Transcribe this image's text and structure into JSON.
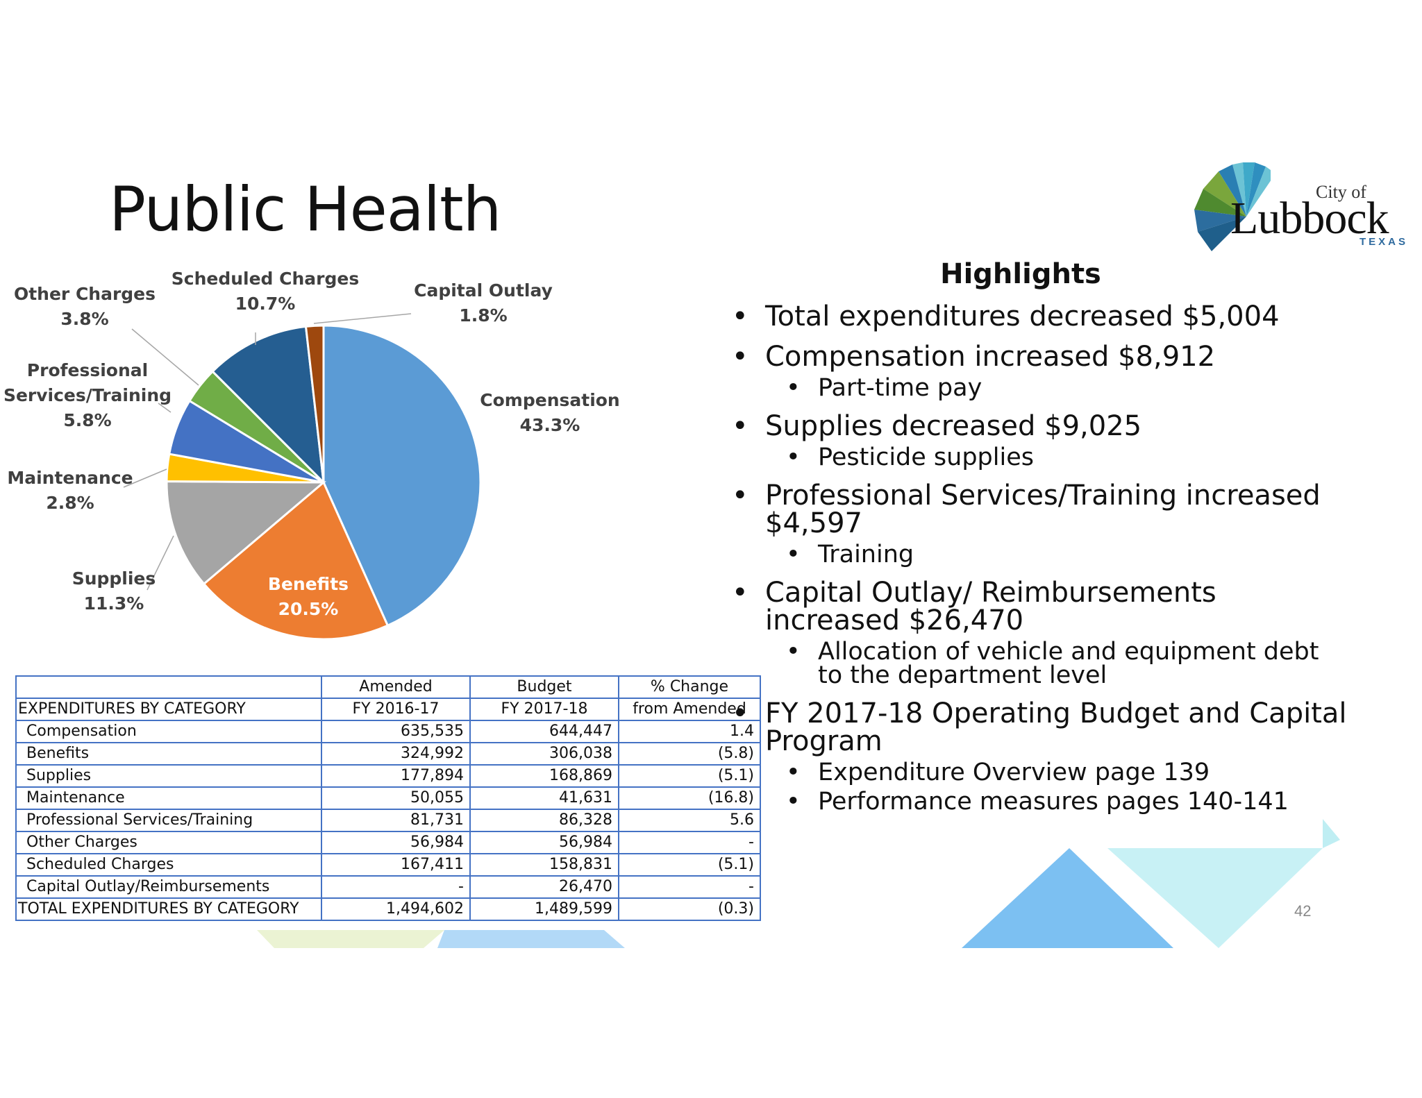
{
  "slide": {
    "title": "Public Health",
    "page_number": "42"
  },
  "logo": {
    "city": "City of",
    "name": "Lubbock",
    "state": "TEXAS"
  },
  "chart_data": {
    "type": "pie",
    "slices": [
      {
        "label": "Compensation",
        "value": 43.3,
        "value_label": "43.3%",
        "color": "#5b9bd5"
      },
      {
        "label": "Benefits",
        "value": 20.5,
        "value_label": "20.5%",
        "color": "#ed7d31"
      },
      {
        "label": "Supplies",
        "value": 11.3,
        "value_label": "11.3%",
        "color": "#a5a5a5"
      },
      {
        "label": "Maintenance",
        "value": 2.8,
        "value_label": "2.8%",
        "color": "#ffc000"
      },
      {
        "label": "Professional Services/Training",
        "value": 5.8,
        "value_label": "5.8%",
        "color": "#4472c4"
      },
      {
        "label": "Other Charges",
        "value": 3.8,
        "value_label": "3.8%",
        "color": "#70ad47"
      },
      {
        "label": "Scheduled Charges",
        "value": 10.7,
        "value_label": "10.7%",
        "color": "#255e91"
      },
      {
        "label": "Capital Outlay",
        "value": 1.8,
        "value_label": "1.8%",
        "color": "#9e480e"
      }
    ]
  },
  "table": {
    "header_row1": [
      "",
      "Amended",
      "Budget",
      "% Change"
    ],
    "header_row2": [
      "EXPENDITURES BY CATEGORY",
      "FY 2016-17",
      "FY 2017-18",
      "from Amended"
    ],
    "rows": [
      [
        "Compensation",
        "635,535",
        "644,447",
        "1.4"
      ],
      [
        "Benefits",
        "324,992",
        "306,038",
        "(5.8)"
      ],
      [
        "Supplies",
        "177,894",
        "168,869",
        "(5.1)"
      ],
      [
        "Maintenance",
        "50,055",
        "41,631",
        "(16.8)"
      ],
      [
        "Professional Services/Training",
        "81,731",
        "86,328",
        "5.6"
      ],
      [
        "Other Charges",
        "56,984",
        "56,984",
        "-"
      ],
      [
        "Scheduled Charges",
        "167,411",
        "158,831",
        "(5.1)"
      ],
      [
        "Capital Outlay/Reimbursements",
        "-",
        "26,470",
        "-"
      ]
    ],
    "total": [
      "TOTAL EXPENDITURES BY CATEGORY",
      "1,494,602",
      "1,489,599",
      "(0.3)"
    ]
  },
  "highlights": {
    "title": "Highlights",
    "items": [
      {
        "text": "Total expenditures decreased $5,004",
        "level": 1
      },
      {
        "text": "Compensation increased $8,912",
        "level": 1
      },
      {
        "text": "Part-time pay",
        "level": 2
      },
      {
        "text": "Supplies decreased $9,025",
        "level": 1
      },
      {
        "text": "Pesticide supplies",
        "level": 2
      },
      {
        "text": "Professional Services/Training increased $4,597",
        "level": 1
      },
      {
        "text": "Training",
        "level": 2
      },
      {
        "text": "Capital Outlay/ Reimbursements increased $26,470",
        "level": 1
      },
      {
        "text": "Allocation of vehicle and equipment debt to the department level",
        "level": 2
      },
      {
        "text": "FY 2017-18 Operating Budget and Capital Program",
        "level": 1
      },
      {
        "text": "Expenditure Overview page 139",
        "level": 2
      },
      {
        "text": "Performance measures pages 140-141",
        "level": 2
      }
    ]
  }
}
